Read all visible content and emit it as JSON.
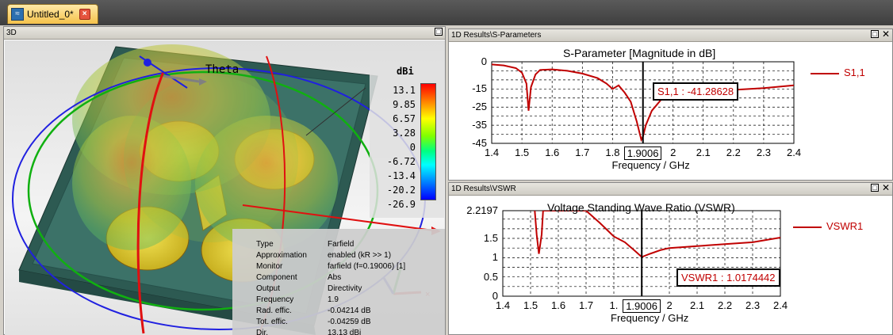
{
  "tab": {
    "title": "Untitled_0*",
    "close": "×"
  },
  "panel3d": {
    "title": "3D",
    "colorbar_unit": "dBi",
    "colorbar_ticks": [
      "13.1",
      "9.85",
      "6.57",
      "3.28",
      "0",
      "-6.72",
      "-13.4",
      "-20.2",
      "-26.9"
    ],
    "theta_label": "Theta",
    "info": [
      {
        "k": "Type",
        "v": "Farfield"
      },
      {
        "k": "Approximation",
        "v": "enabled (kR >> 1)"
      },
      {
        "k": "Monitor",
        "v": "farfield (f=0.19006) [1]"
      },
      {
        "k": "Component",
        "v": "Abs"
      },
      {
        "k": "Output",
        "v": "Directivity"
      },
      {
        "k": "Frequency",
        "v": "1.9"
      },
      {
        "k": "Rad. effic.",
        "v": "-0.04214 dB"
      },
      {
        "k": "Tot. effic.",
        "v": "-0.04259 dB"
      },
      {
        "k": "Dir.",
        "v": "13.13 dBi"
      }
    ]
  },
  "sparam": {
    "header": "1D Results\\S-Parameters",
    "marker_value": "1.9006",
    "marker_label": "S1,1 : -41.28628"
  },
  "vswr": {
    "header": "1D Results\\VSWR",
    "marker_value": "1.9006",
    "marker_label": "VSWR1 : 1.0174442"
  },
  "colors": {
    "curve": "#c00000",
    "accent_tab": "#f5c24a"
  },
  "chart_data": [
    {
      "type": "line",
      "title": "S-Parameter [Magnitude in dB]",
      "xlabel": "Frequency / GHz",
      "ylabel": "",
      "xlim": [
        1.4,
        2.4
      ],
      "ylim": [
        -45,
        0
      ],
      "xticks": [
        "1.4",
        "1.5",
        "1.6",
        "1.7",
        "1.8",
        "1.9006",
        "2",
        "2.1",
        "2.2",
        "2.3",
        "2.4"
      ],
      "yticks": [
        "0",
        "-15",
        "-25",
        "-35",
        "-45"
      ],
      "legend": "right",
      "grid": true,
      "series": [
        {
          "name": "S1,1",
          "x": [
            1.4,
            1.44,
            1.48,
            1.5,
            1.515,
            1.522,
            1.53,
            1.545,
            1.56,
            1.6,
            1.65,
            1.7,
            1.75,
            1.78,
            1.8,
            1.82,
            1.84,
            1.86,
            1.88,
            1.895,
            1.9006,
            1.91,
            1.93,
            1.96,
            2.0,
            2.1,
            2.2,
            2.3,
            2.4
          ],
          "y": [
            -1.5,
            -2,
            -3.5,
            -6,
            -12,
            -27,
            -14,
            -7,
            -4.5,
            -4.2,
            -5,
            -6.5,
            -9,
            -12,
            -15,
            -13,
            -17,
            -22,
            -33,
            -43,
            -41.3,
            -35,
            -27,
            -21,
            -18,
            -16.5,
            -15.5,
            -14.5,
            -13
          ]
        }
      ]
    },
    {
      "type": "line",
      "title": "Voltage Standing Wave Ratio (VSWR)",
      "xlabel": "Frequency / GHz",
      "ylabel": "",
      "xlim": [
        1.4,
        2.4
      ],
      "ylim": [
        0,
        2.2197
      ],
      "xticks": [
        "1.4",
        "1.5",
        "1.6",
        "1.7",
        "1.",
        "1.9006",
        "2",
        "2.1",
        "2.2",
        "2.3",
        "2.4"
      ],
      "yticks": [
        "2.2197",
        "1.5",
        "1",
        "0.5",
        "0"
      ],
      "legend": "right",
      "grid": true,
      "series": [
        {
          "name": "VSWR1",
          "x": [
            1.515,
            1.522,
            1.53,
            1.54,
            1.545,
            1.7,
            1.75,
            1.8,
            1.84,
            1.88,
            1.9006,
            1.93,
            1.97,
            2.0,
            2.1,
            2.2,
            2.3,
            2.4
          ],
          "y": [
            2.2197,
            1.6,
            1.1,
            1.6,
            2.2197,
            2.2197,
            1.9,
            1.55,
            1.4,
            1.15,
            1.0174,
            1.1,
            1.2,
            1.25,
            1.3,
            1.35,
            1.4,
            1.52
          ]
        }
      ]
    }
  ]
}
